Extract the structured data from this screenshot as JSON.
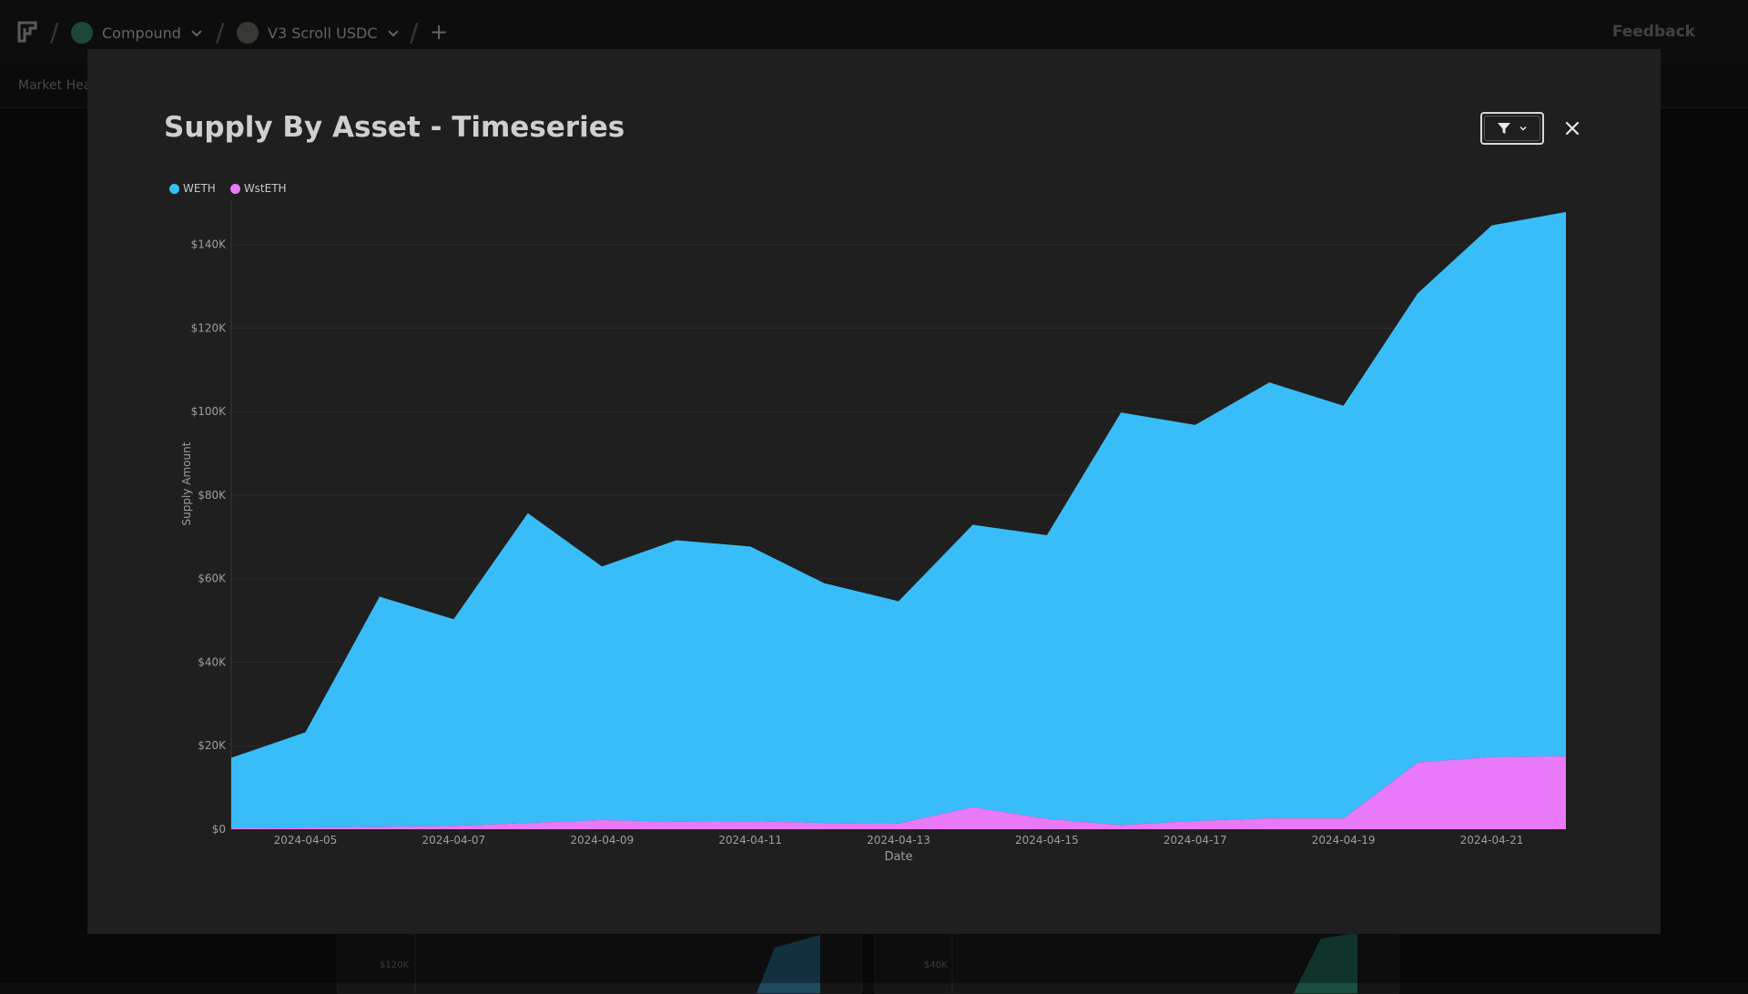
{
  "app": {
    "breadcrumb": [
      {
        "label": "Compound",
        "icon": "compound-logo-icon"
      },
      {
        "label": "V3 Scroll USDC",
        "icon": "scroll-logo-icon"
      }
    ],
    "feedback_label": "Feedback",
    "subnav_label": "Market Hea"
  },
  "background_cards": [
    {
      "label": "$120K"
    },
    {
      "label": "$40K"
    }
  ],
  "modal": {
    "title": "Supply By Asset - Timeseries",
    "filter_icon": "filter-icon",
    "close_icon": "close-icon"
  },
  "colors": {
    "WETH": "#38bdf8",
    "WstETH": "#e879f9"
  },
  "chart_data": {
    "type": "area",
    "stacked": true,
    "xlabel": "Date",
    "ylabel": "Supply Amount",
    "ylim": [
      0,
      148000
    ],
    "yticks": [
      0,
      20000,
      40000,
      60000,
      80000,
      100000,
      120000,
      140000
    ],
    "ytick_labels": [
      "$0",
      "$20K",
      "$40K",
      "$60K",
      "$80K",
      "$100K",
      "$120K",
      "$140K"
    ],
    "xtick_labels": [
      "2024-04-05",
      "2024-04-07",
      "2024-04-09",
      "2024-04-11",
      "2024-04-13",
      "2024-04-15",
      "2024-04-17",
      "2024-04-19",
      "2024-04-21"
    ],
    "legend": "top-left",
    "grid": true,
    "x": [
      "2024-04-04",
      "2024-04-05",
      "2024-04-06",
      "2024-04-07",
      "2024-04-08",
      "2024-04-09",
      "2024-04-10",
      "2024-04-11",
      "2024-04-12",
      "2024-04-13",
      "2024-04-14",
      "2024-04-15",
      "2024-04-16",
      "2024-04-17",
      "2024-04-18",
      "2024-04-19",
      "2024-04-20",
      "2024-04-21",
      "2024-04-22"
    ],
    "series": [
      {
        "name": "WstETH",
        "values": [
          300,
          400,
          600,
          800,
          1500,
          2200,
          1800,
          1900,
          1500,
          1400,
          5300,
          2500,
          1000,
          2000,
          2600,
          2600,
          16000,
          17300,
          17500
        ]
      },
      {
        "name": "WETH",
        "values": [
          16800,
          22800,
          55100,
          49500,
          74200,
          60700,
          67400,
          65800,
          57400,
          53200,
          67600,
          67900,
          98800,
          94800,
          104400,
          98800,
          112300,
          127300,
          130300
        ]
      }
    ]
  }
}
